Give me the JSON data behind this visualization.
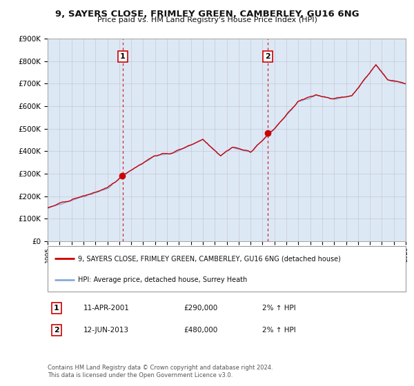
{
  "title": "9, SAYERS CLOSE, FRIMLEY GREEN, CAMBERLEY, GU16 6NG",
  "subtitle": "Price paid vs. HM Land Registry's House Price Index (HPI)",
  "x_start_year": 1995,
  "x_end_year": 2025,
  "y_min": 0,
  "y_max": 900000,
  "y_ticks": [
    0,
    100000,
    200000,
    300000,
    400000,
    500000,
    600000,
    700000,
    800000,
    900000
  ],
  "y_tick_labels": [
    "£0",
    "£100K",
    "£200K",
    "£300K",
    "£400K",
    "£500K",
    "£600K",
    "£700K",
    "£800K",
    "£900K"
  ],
  "sale1_year": 2001.28,
  "sale1_price": 290000,
  "sale1_label": "1",
  "sale1_date": "11-APR-2001",
  "sale1_hpi_pct": "2% ↑ HPI",
  "sale2_year": 2013.45,
  "sale2_price": 480000,
  "sale2_label": "2",
  "sale2_date": "12-JUN-2013",
  "sale2_hpi_pct": "2% ↑ HPI",
  "line_color_property": "#cc0000",
  "line_color_hpi": "#88aadd",
  "background_color": "#dde8f5",
  "legend_label_property": "9, SAYERS CLOSE, FRIMLEY GREEN, CAMBERLEY, GU16 6NG (detached house)",
  "legend_label_hpi": "HPI: Average price, detached house, Surrey Heath",
  "footer_text": "Contains HM Land Registry data © Crown copyright and database right 2024.\nThis data is licensed under the Open Government Licence v3.0.",
  "grid_color": "#bbbbcc"
}
